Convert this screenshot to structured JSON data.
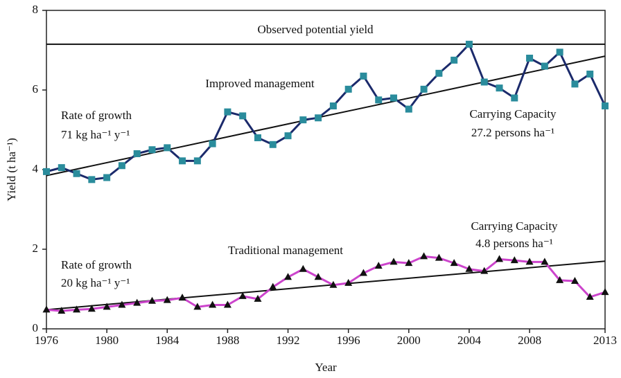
{
  "chart_data": {
    "type": "line",
    "x_label": "Year",
    "y_label": "Yield (t ha⁻¹)",
    "x": [
      1976,
      1977,
      1978,
      1979,
      1980,
      1981,
      1982,
      1983,
      1984,
      1985,
      1986,
      1987,
      1988,
      1989,
      1990,
      1991,
      1992,
      1993,
      1994,
      1995,
      1996,
      1997,
      1998,
      1999,
      2000,
      2001,
      2002,
      2003,
      2004,
      2005,
      2006,
      2007,
      2008,
      2009,
      2010,
      2011,
      2012,
      2013
    ],
    "series": [
      {
        "name": "Improved management",
        "color": "#1b2a6b",
        "marker_color": "#2a8c9c",
        "marker": "square",
        "values": [
          3.95,
          4.05,
          3.9,
          3.75,
          3.8,
          4.1,
          4.4,
          4.5,
          4.55,
          4.22,
          4.22,
          4.65,
          5.45,
          5.35,
          4.8,
          4.63,
          4.85,
          5.25,
          5.3,
          5.6,
          6.02,
          6.35,
          5.75,
          5.8,
          5.52,
          6.02,
          6.42,
          6.75,
          7.15,
          6.2,
          6.05,
          5.8,
          6.8,
          6.6,
          6.95,
          6.15,
          6.4,
          5.6
        ]
      },
      {
        "name": "Traditional management",
        "color": "#cc44cc",
        "marker_color": "#111111",
        "marker": "triangle",
        "values": [
          0.48,
          0.45,
          0.48,
          0.5,
          0.55,
          0.6,
          0.65,
          0.7,
          0.72,
          0.78,
          0.55,
          0.6,
          0.6,
          0.82,
          0.75,
          1.05,
          1.3,
          1.5,
          1.3,
          1.1,
          1.15,
          1.4,
          1.58,
          1.68,
          1.65,
          1.82,
          1.78,
          1.65,
          1.5,
          1.45,
          1.75,
          1.72,
          1.68,
          1.68,
          1.22,
          1.2,
          0.8,
          0.92
        ]
      }
    ],
    "trend_lines": [
      {
        "x": [
          1976,
          2013
        ],
        "values": [
          3.85,
          6.85
        ]
      },
      {
        "x": [
          1976,
          2013
        ],
        "values": [
          0.48,
          1.7
        ]
      }
    ],
    "potential_yield": {
      "label": "Observed potential yield",
      "value": 7.15
    },
    "annotations": [
      "Rate of growth",
      "71 kg ha⁻¹ y⁻¹",
      "Carrying Capacity",
      "27.2 persons ha⁻¹",
      "Rate of growth",
      "20 kg ha⁻¹ y⁻¹",
      "Carrying Capacity",
      "4.8 persons ha⁻¹"
    ],
    "xlim": [
      1976,
      2013
    ],
    "xticks": [
      1976,
      1980,
      1984,
      1988,
      1992,
      1996,
      2000,
      2004,
      2008,
      2013
    ],
    "ylim": [
      0,
      8
    ],
    "yticks": [
      0,
      2,
      4,
      6,
      8
    ],
    "grid": false
  }
}
